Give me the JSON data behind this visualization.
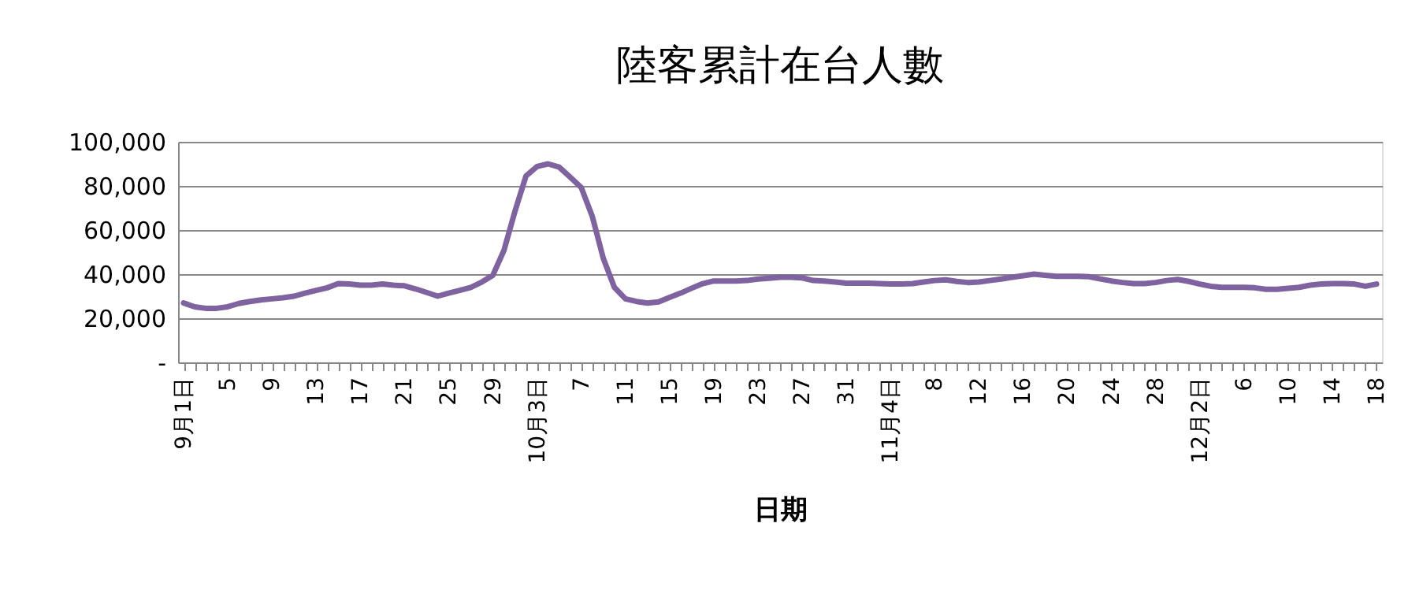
{
  "chart_data": {
    "type": "line",
    "title": "陸客累計在台人數",
    "xlabel": "日期",
    "categories": [
      "9月1日",
      null,
      null,
      null,
      "5",
      null,
      null,
      null,
      "9",
      null,
      null,
      null,
      "13",
      null,
      null,
      null,
      "17",
      null,
      null,
      null,
      "21",
      null,
      null,
      null,
      "25",
      null,
      null,
      null,
      "29",
      null,
      null,
      null,
      "10月3日",
      null,
      null,
      null,
      "7",
      null,
      null,
      null,
      "11",
      null,
      null,
      null,
      "15",
      null,
      null,
      null,
      "19",
      null,
      null,
      null,
      "23",
      null,
      null,
      null,
      "27",
      null,
      null,
      null,
      "31",
      null,
      null,
      null,
      "11月4日",
      null,
      null,
      null,
      "8",
      null,
      null,
      null,
      "12",
      null,
      null,
      null,
      "16",
      null,
      null,
      null,
      "20",
      null,
      null,
      null,
      "24",
      null,
      null,
      null,
      "28",
      null,
      null,
      null,
      "12月2日",
      null,
      null,
      null,
      "6",
      null,
      null,
      null,
      "10",
      null,
      null,
      null,
      "14",
      null,
      null,
      null,
      "18"
    ],
    "series": [
      {
        "color": "#7f63a1",
        "values": [
          26900,
          25200,
          24500,
          24500,
          25200,
          26700,
          27600,
          28300,
          28800,
          29300,
          30000,
          31400,
          32600,
          33800,
          35700,
          35500,
          35000,
          35000,
          35500,
          35000,
          34700,
          33300,
          31700,
          30000,
          31400,
          32600,
          34000,
          36400,
          39500,
          50700,
          68500,
          84500,
          88800,
          90000,
          88500,
          84000,
          79300,
          66200,
          47100,
          34000,
          28800,
          27600,
          26900,
          27400,
          29500,
          31400,
          33600,
          35700,
          36900,
          36900,
          36900,
          37100,
          37800,
          38100,
          38600,
          38600,
          38300,
          37100,
          36900,
          36400,
          35900,
          35900,
          35900,
          35700,
          35500,
          35500,
          35700,
          36400,
          37100,
          37400,
          36700,
          36200,
          36400,
          37100,
          37800,
          38600,
          39300,
          40000,
          39500,
          39000,
          39000,
          39000,
          38800,
          37800,
          36900,
          36200,
          35700,
          35700,
          36200,
          37100,
          37600,
          36700,
          35500,
          34500,
          34000,
          34000,
          34000,
          33800,
          33100,
          33100,
          33600,
          34000,
          35000,
          35500,
          35700,
          35700,
          35500,
          34500,
          35500
        ]
      }
    ],
    "ylim": [
      0,
      100000
    ],
    "yticks": [
      {
        "value": 0,
        "label": "-"
      },
      {
        "value": 20000,
        "label": "20,000"
      },
      {
        "value": 40000,
        "label": "40,000"
      },
      {
        "value": 60000,
        "label": "60,000"
      },
      {
        "value": 80000,
        "label": "80,000"
      },
      {
        "value": 100000,
        "label": "100,000"
      }
    ],
    "grid": "y",
    "marker": "none",
    "line_style": "solid"
  }
}
